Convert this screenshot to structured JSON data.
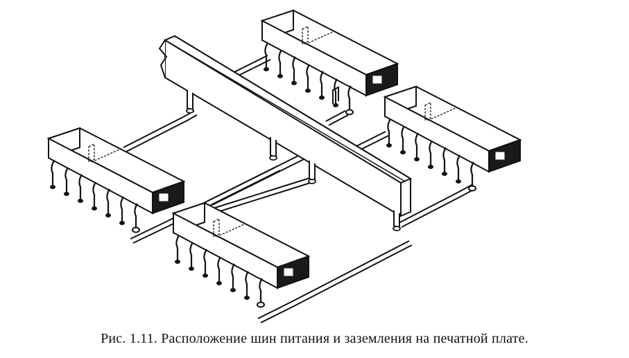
{
  "caption": "Рис. 1.11. Расположение шин питания и заземления на печатной плате.",
  "colors": {
    "ink": "#111111",
    "chip_dark": "#1a1a1a",
    "paper": "#ffffff"
  },
  "diagram": {
    "chips": [
      {
        "name": "chip-top"
      },
      {
        "name": "chip-right"
      },
      {
        "name": "chip-left"
      },
      {
        "name": "chip-bottom"
      }
    ],
    "bus": {
      "name": "power-bus-bar"
    },
    "traces": [
      {
        "name": "ground-trace"
      },
      {
        "name": "power-trace"
      }
    ]
  }
}
